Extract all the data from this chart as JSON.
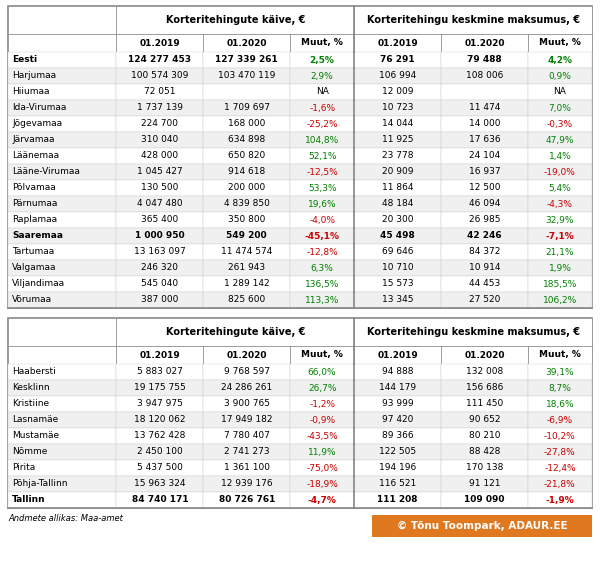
{
  "table1": {
    "header1": "Korteritehingute käive, €",
    "header2": "Korteritehingu keskmine maksumus, €",
    "subheaders": [
      "01.2019",
      "01.2020",
      "Muut, %",
      "01.2019",
      "01.2020",
      "Muut, %"
    ],
    "rows": [
      [
        "Eesti",
        "124 277 453",
        "127 339 261",
        "2,5%",
        "76 291",
        "79 488",
        "4,2%"
      ],
      [
        "Harjumaa",
        "100 574 309",
        "103 470 119",
        "2,9%",
        "106 994",
        "108 006",
        "0,9%"
      ],
      [
        "Hiiumaa",
        "72 051",
        "",
        "NA",
        "12 009",
        "",
        "NA"
      ],
      [
        "Ida-Virumaa",
        "1 737 139",
        "1 709 697",
        "-1,6%",
        "10 723",
        "11 474",
        "7,0%"
      ],
      [
        "Jõgevamaa",
        "224 700",
        "168 000",
        "-25,2%",
        "14 044",
        "14 000",
        "-0,3%"
      ],
      [
        "Järvamaa",
        "310 040",
        "634 898",
        "104,8%",
        "11 925",
        "17 636",
        "47,9%"
      ],
      [
        "Läänemaa",
        "428 000",
        "650 820",
        "52,1%",
        "23 778",
        "24 104",
        "1,4%"
      ],
      [
        "Lääne-Virumaa",
        "1 045 427",
        "914 618",
        "-12,5%",
        "20 909",
        "16 937",
        "-19,0%"
      ],
      [
        "Põlvamaa",
        "130 500",
        "200 000",
        "53,3%",
        "11 864",
        "12 500",
        "5,4%"
      ],
      [
        "Pärnumaa",
        "4 047 480",
        "4 839 850",
        "19,6%",
        "48 184",
        "46 094",
        "-4,3%"
      ],
      [
        "Raplamaa",
        "365 400",
        "350 800",
        "-4,0%",
        "20 300",
        "26 985",
        "32,9%"
      ],
      [
        "Saaremaa",
        "1 000 950",
        "549 200",
        "-45,1%",
        "45 498",
        "42 246",
        "-7,1%"
      ],
      [
        "Tartumaa",
        "13 163 097",
        "11 474 574",
        "-12,8%",
        "69 646",
        "84 372",
        "21,1%"
      ],
      [
        "Valgamaa",
        "246 320",
        "261 943",
        "6,3%",
        "10 710",
        "10 914",
        "1,9%"
      ],
      [
        "Viljandimaa",
        "545 040",
        "1 289 142",
        "136,5%",
        "15 573",
        "44 453",
        "185,5%"
      ],
      [
        "Võrumaa",
        "387 000",
        "825 600",
        "113,3%",
        "13 345",
        "27 520",
        "106,2%"
      ]
    ],
    "bold_rows": [
      0,
      11
    ],
    "muut_colors1": [
      "green",
      "green",
      "black",
      "red",
      "red",
      "green",
      "green",
      "red",
      "green",
      "green",
      "red",
      "red",
      "red",
      "green",
      "green",
      "green"
    ],
    "muut_colors2": [
      "green",
      "green",
      "black",
      "green",
      "red",
      "green",
      "green",
      "red",
      "green",
      "red",
      "green",
      "red",
      "green",
      "green",
      "green",
      "green"
    ]
  },
  "table2": {
    "header1": "Korteritehingute käive, €",
    "header2": "Korteritehingu keskmine maksumus, €",
    "subheaders": [
      "01.2019",
      "01.2020",
      "Muut, %",
      "01.2019",
      "01.2020",
      "Muut, %"
    ],
    "rows": [
      [
        "Haabersti",
        "5 883 027",
        "9 768 597",
        "66,0%",
        "94 888",
        "132 008",
        "39,1%"
      ],
      [
        "Kesklinn",
        "19 175 755",
        "24 286 261",
        "26,7%",
        "144 179",
        "156 686",
        "8,7%"
      ],
      [
        "Kristiine",
        "3 947 975",
        "3 900 765",
        "-1,2%",
        "93 999",
        "111 450",
        "18,6%"
      ],
      [
        "Lasnamäe",
        "18 120 062",
        "17 949 182",
        "-0,9%",
        "97 420",
        "90 652",
        "-6,9%"
      ],
      [
        "Mustamäe",
        "13 762 428",
        "7 780 407",
        "-43,5%",
        "89 366",
        "80 210",
        "-10,2%"
      ],
      [
        "Nõmme",
        "2 450 100",
        "2 741 273",
        "11,9%",
        "122 505",
        "88 428",
        "-27,8%"
      ],
      [
        "Pirita",
        "5 437 500",
        "1 361 100",
        "-75,0%",
        "194 196",
        "170 138",
        "-12,4%"
      ],
      [
        "Põhja-Tallinn",
        "15 963 324",
        "12 939 176",
        "-18,9%",
        "116 521",
        "91 121",
        "-21,8%"
      ],
      [
        "Tallinn",
        "84 740 171",
        "80 726 761",
        "-4,7%",
        "111 208",
        "109 090",
        "-1,9%"
      ]
    ],
    "bold_rows": [
      8
    ],
    "muut_colors1": [
      "green",
      "green",
      "red",
      "red",
      "red",
      "green",
      "red",
      "red",
      "red"
    ],
    "muut_colors2": [
      "green",
      "green",
      "green",
      "red",
      "red",
      "red",
      "red",
      "red",
      "red"
    ]
  },
  "footer_text": "Andmete allikas: Maa-amet",
  "copyright_text": "© Tõnu Toompark, ADAUR.EE",
  "bg_color": "#FFFFFF",
  "green_color": "#008000",
  "red_color": "#CC0000",
  "border_color": "#888888",
  "light_border": "#CCCCCC",
  "alt_row_color": "#F0F0F0",
  "copyright_bg": "#E07820"
}
